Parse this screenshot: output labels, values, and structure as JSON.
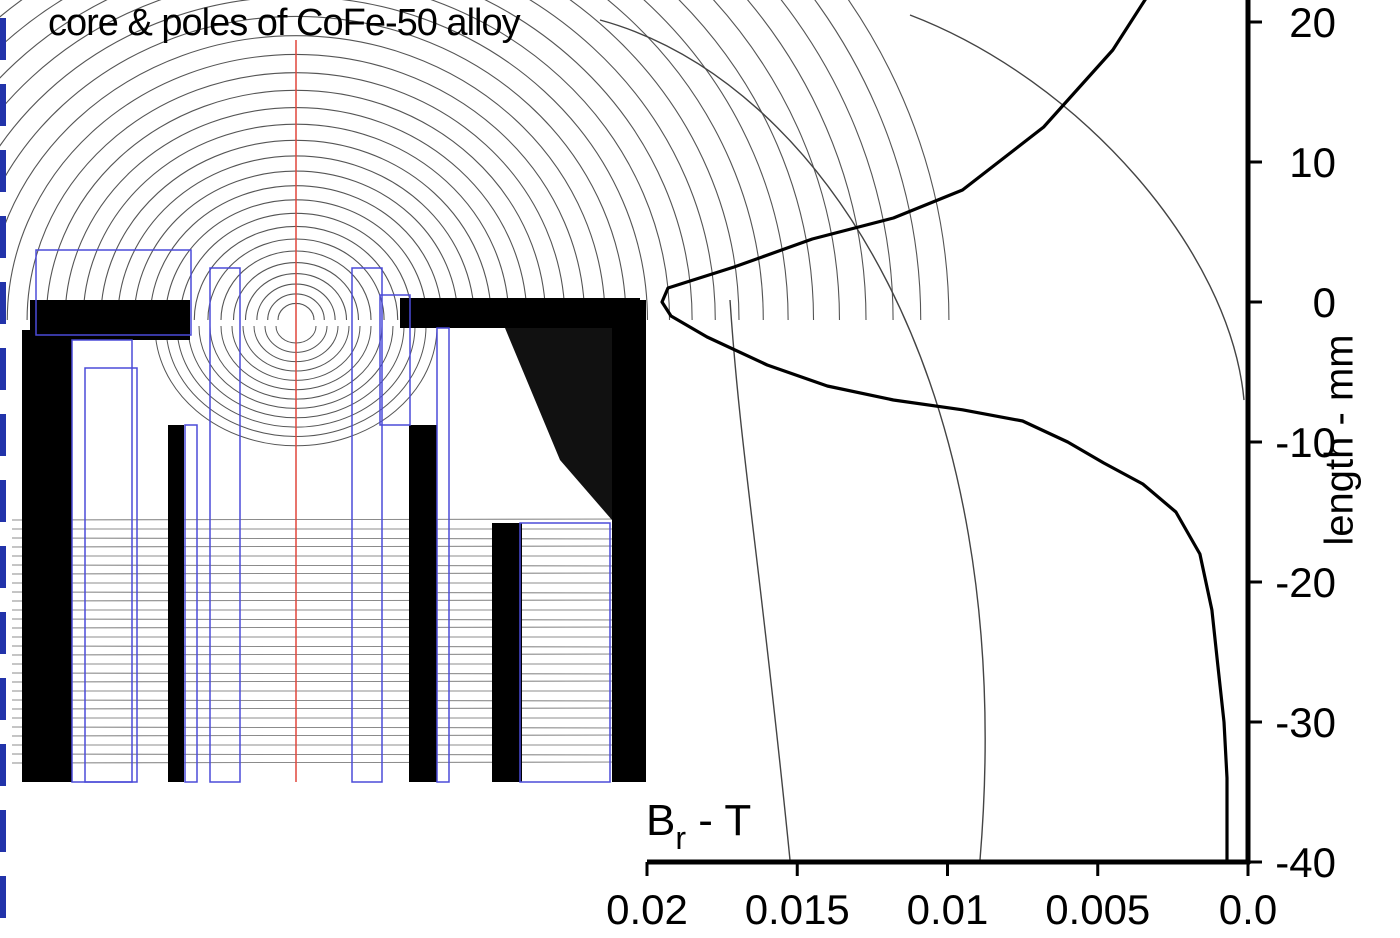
{
  "title": "core & poles of CoFe-50 alloy",
  "chart_data": {
    "type": "line",
    "title": "core & poles of CoFe-50 alloy",
    "xlabel_main": "B",
    "xlabel_sub": "r",
    "xlabel_suffix": " - T",
    "ylabel": "length - mm",
    "xlim": [
      0.02,
      0.0
    ],
    "ylim": [
      -40,
      22
    ],
    "x_ticks": [
      0.02,
      0.015,
      0.01,
      0.005,
      0.0
    ],
    "x_tick_labels": [
      "0.02",
      "0.015",
      "0.01",
      "0.005",
      "0.0"
    ],
    "y_ticks": [
      20,
      10,
      0,
      -10,
      -20,
      -30,
      -40
    ],
    "y_tick_labels": [
      "20",
      "10",
      "0",
      "-10",
      "-20",
      "-30",
      "-40"
    ],
    "series": [
      {
        "x": [
          0.0033,
          0.0045,
          0.0068,
          0.0095,
          0.0118,
          0.0145,
          0.0171,
          0.0193,
          0.0195,
          0.0192,
          0.018,
          0.016,
          0.014,
          0.0118,
          0.0095,
          0.0075,
          0.006,
          0.0048,
          0.0035,
          0.0024,
          0.0016,
          0.0012,
          0.001,
          0.0008,
          0.0007,
          0.0007,
          0.0007
        ],
        "y": [
          22,
          18,
          12.5,
          8,
          6,
          4.5,
          2.5,
          1.0,
          0,
          -1.0,
          -2.5,
          -4.5,
          -6,
          -7,
          -7.7,
          -8.5,
          -10,
          -11.5,
          -13,
          -15,
          -18,
          -22,
          -26,
          -30,
          -34,
          -38,
          -40
        ]
      }
    ]
  }
}
